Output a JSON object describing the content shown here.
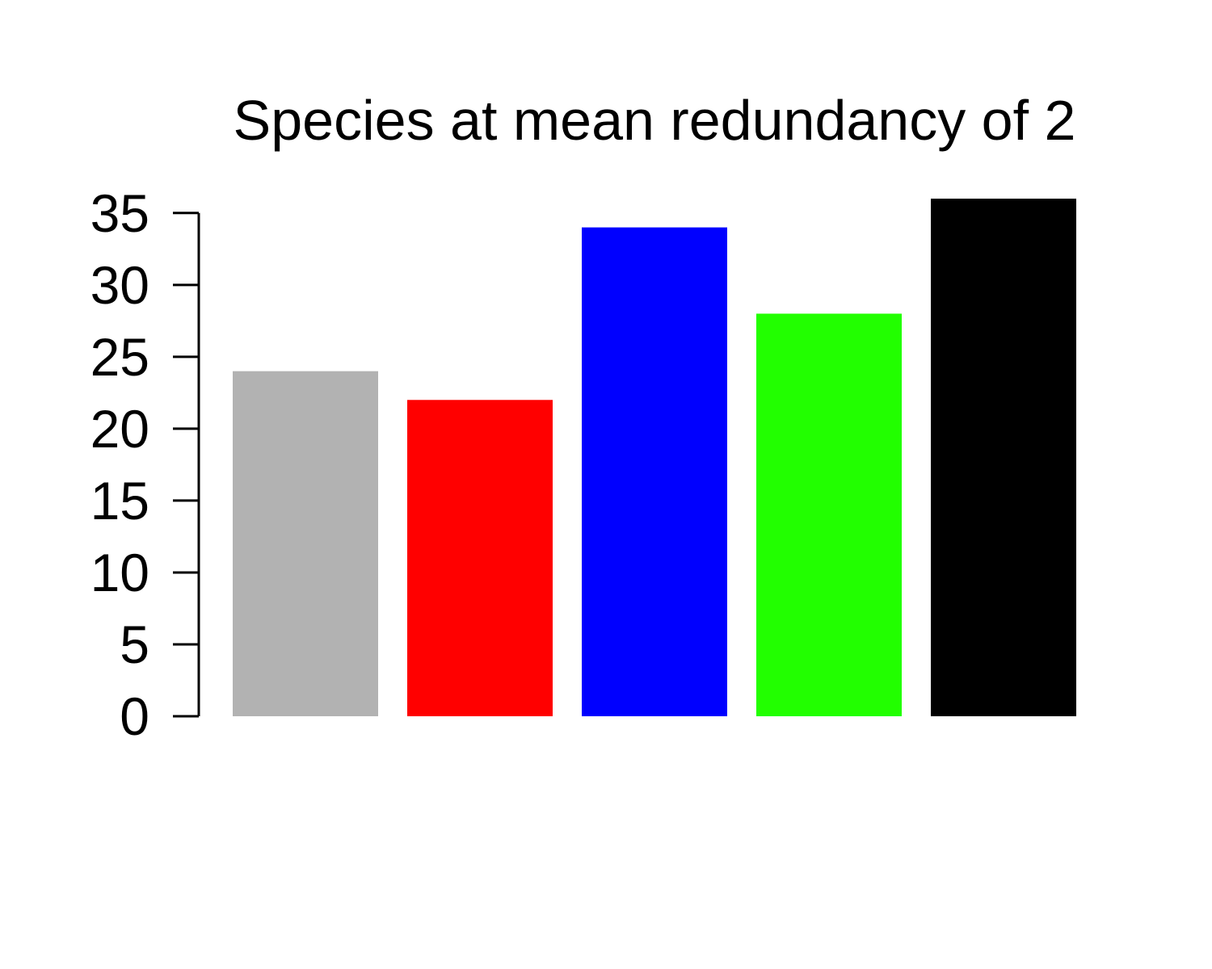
{
  "chart_data": {
    "type": "bar",
    "title": "Species at mean redundancy of 2",
    "xlabel": "",
    "ylabel": "",
    "categories": [
      "",
      "",
      "",
      "",
      ""
    ],
    "values": [
      24,
      22,
      34,
      28,
      36
    ],
    "colors": [
      "#b2b2b2",
      "#ff0000",
      "#0000ff",
      "#22ff00",
      "#000000"
    ],
    "ylim": [
      0,
      36
    ],
    "yticks": [
      0,
      5,
      10,
      15,
      20,
      25,
      30,
      35
    ],
    "grid": false,
    "legend": "none"
  }
}
